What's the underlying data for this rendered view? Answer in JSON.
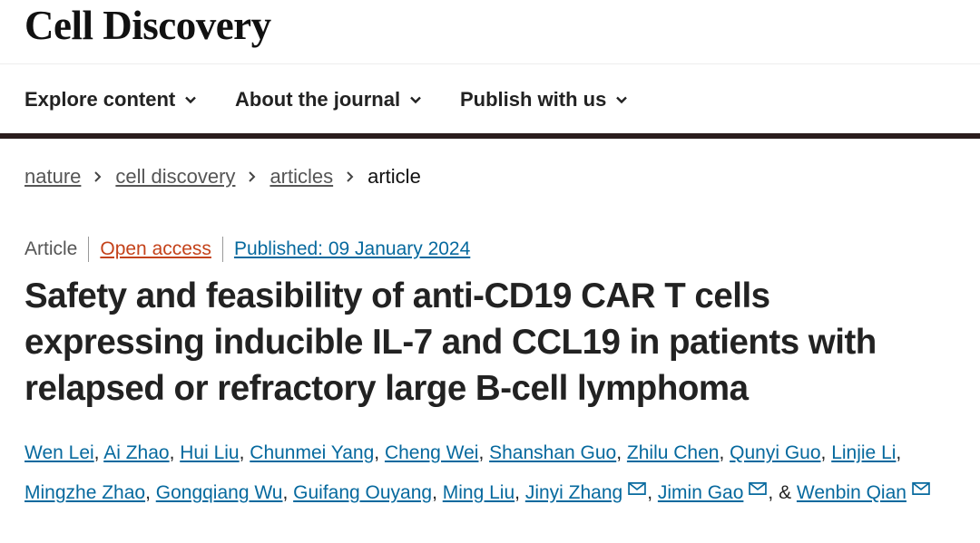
{
  "site": {
    "logo": "Cell Discovery"
  },
  "nav": {
    "items": [
      {
        "label": "Explore content"
      },
      {
        "label": "About the journal"
      },
      {
        "label": "Publish with us"
      }
    ]
  },
  "breadcrumb": {
    "items": [
      {
        "label": "nature"
      },
      {
        "label": "cell discovery"
      },
      {
        "label": "articles"
      }
    ],
    "current": "article"
  },
  "article": {
    "type": "Article",
    "access": "Open access",
    "published": "Published: 09 January 2024",
    "title": "Safety and feasibility of anti-CD19 CAR T cells expressing inducible IL-7 and CCL19 in patients with relapsed or refractory large B-cell lymphoma",
    "authors": [
      {
        "name": "Wen Lei",
        "email": false
      },
      {
        "name": "Ai Zhao",
        "email": false
      },
      {
        "name": "Hui Liu",
        "email": false
      },
      {
        "name": "Chunmei Yang",
        "email": false
      },
      {
        "name": "Cheng Wei",
        "email": false
      },
      {
        "name": "Shanshan Guo",
        "email": false
      },
      {
        "name": "Zhilu Chen",
        "email": false
      },
      {
        "name": "Qunyi Guo",
        "email": false
      },
      {
        "name": "Linjie Li",
        "email": false
      },
      {
        "name": "Mingzhe Zhao",
        "email": false
      },
      {
        "name": "Gongqiang Wu",
        "email": false
      },
      {
        "name": "Guifang Ouyang",
        "email": false
      },
      {
        "name": "Ming Liu",
        "email": false
      },
      {
        "name": "Jinyi Zhang",
        "email": true
      },
      {
        "name": "Jimin Gao",
        "email": true
      },
      {
        "name": "Wenbin Qian",
        "email": true
      }
    ],
    "separator": ",",
    "last_joiner": "&"
  },
  "icons": {
    "chevron": "chevron-down-icon",
    "breadcrumb_sep": "chevron-right-icon",
    "email": "mail-icon"
  },
  "colors": {
    "link": "#06699e",
    "open_access": "#c4421a",
    "nav_border": "#2a1d1d",
    "text": "#222222"
  }
}
